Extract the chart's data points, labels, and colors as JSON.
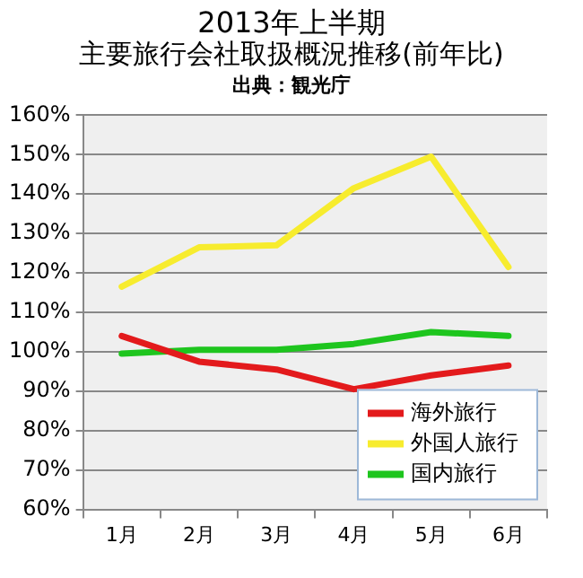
{
  "chart_data": {
    "type": "line",
    "title": "2013年上半期",
    "subtitle": "主要旅行会社取扱概況推移(前年比)",
    "annotations": [
      "出典：観光庁"
    ],
    "categories": [
      "1月",
      "2月",
      "3月",
      "4月",
      "5月",
      "6月"
    ],
    "series": [
      {
        "name": "海外旅行",
        "color": "#e31a1c",
        "values": [
          104,
          97.5,
          95.5,
          90.5,
          94,
          96.5
        ]
      },
      {
        "name": "外国人旅行",
        "color": "#f7ec2e",
        "values": [
          116.5,
          126.5,
          127,
          141.5,
          149.5,
          121.5
        ]
      },
      {
        "name": "国内旅行",
        "color": "#1ec51e",
        "values": [
          99.5,
          100.5,
          100.5,
          102,
          105,
          104
        ]
      }
    ],
    "ylim": [
      60,
      160
    ],
    "yticks": [
      {
        "value": 60,
        "label": "60%"
      },
      {
        "value": 70,
        "label": "70%"
      },
      {
        "value": 80,
        "label": "80%"
      },
      {
        "value": 90,
        "label": "90%"
      },
      {
        "value": 100,
        "label": "100%"
      },
      {
        "value": 110,
        "label": "110%"
      },
      {
        "value": 120,
        "label": "120%"
      },
      {
        "value": 130,
        "label": "130%"
      },
      {
        "value": 140,
        "label": "140%"
      },
      {
        "value": 150,
        "label": "150%"
      },
      {
        "value": 160,
        "label": "160%"
      }
    ],
    "grid": "y",
    "legend": "bottom right",
    "marker": "none",
    "line_style": "solid"
  }
}
